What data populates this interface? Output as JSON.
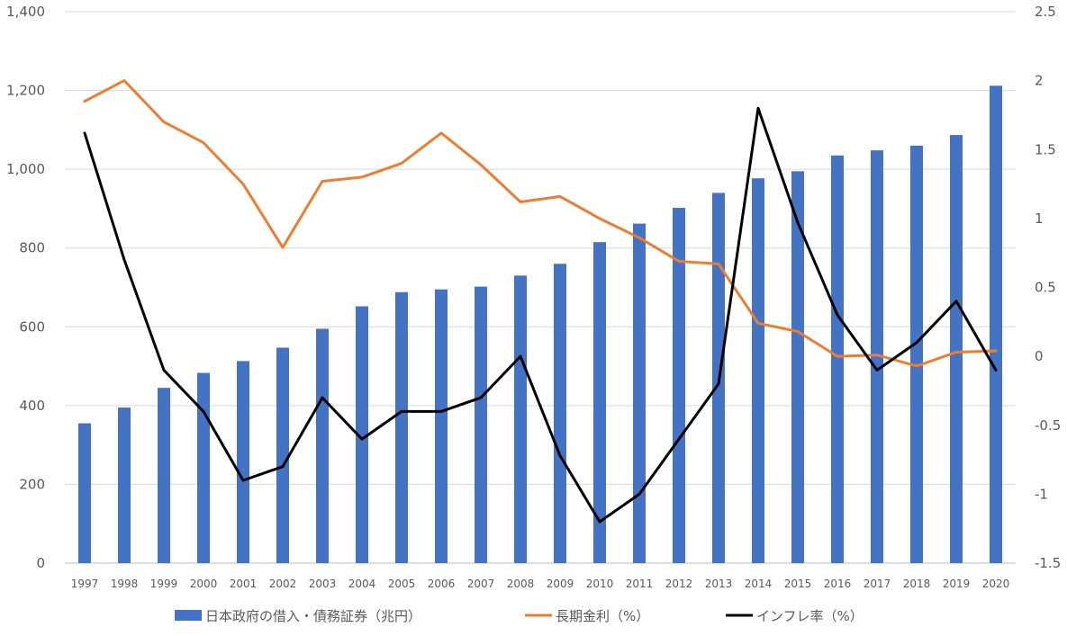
{
  "chart_data": {
    "type": "bar",
    "categories": [
      "1997",
      "1998",
      "1999",
      "2000",
      "2001",
      "2002",
      "2003",
      "2004",
      "2005",
      "2006",
      "2007",
      "2008",
      "2009",
      "2010",
      "2011",
      "2012",
      "2013",
      "2014",
      "2015",
      "2016",
      "2017",
      "2018",
      "2019",
      "2020"
    ],
    "series": [
      {
        "name": "日本政府の借入・債務証券（兆円）",
        "type": "bar",
        "axis": "left",
        "color": "#4472C4",
        "values": [
          355,
          395,
          445,
          483,
          513,
          547,
          595,
          652,
          688,
          695,
          702,
          730,
          760,
          815,
          862,
          902,
          940,
          977,
          995,
          1035,
          1048,
          1060,
          1087,
          1212
        ]
      },
      {
        "name": "長期金利（%）",
        "type": "line",
        "axis": "right",
        "color": "#ED7D31",
        "values": [
          1.85,
          2.0,
          1.7,
          1.55,
          1.25,
          0.79,
          1.27,
          1.3,
          1.4,
          1.62,
          1.39,
          1.12,
          1.16,
          1.0,
          0.86,
          0.69,
          0.67,
          0.24,
          0.18,
          0.0,
          0.01,
          -0.07,
          0.03,
          0.04
        ]
      },
      {
        "name": "インフレ率（%）",
        "type": "line",
        "axis": "right",
        "color": "#000000",
        "values": [
          1.62,
          0.7,
          -0.1,
          -0.4,
          -0.9,
          -0.8,
          -0.3,
          -0.6,
          -0.4,
          -0.4,
          -0.3,
          0.0,
          -0.72,
          -1.2,
          -1.0,
          -0.6,
          -0.2,
          1.8,
          0.97,
          0.3,
          -0.1,
          0.1,
          0.4,
          -0.1
        ]
      }
    ],
    "y_left": {
      "min": 0,
      "max": 1400,
      "step": 200,
      "ticks": [
        "0",
        "200",
        "400",
        "600",
        "800",
        "1,000",
        "1,200",
        "1,400"
      ]
    },
    "y_right": {
      "min": -1.5,
      "max": 2.5,
      "step": 0.5,
      "ticks": [
        "-1.5",
        "-1",
        "-0.5",
        "0",
        "0.5",
        "1",
        "1.5",
        "2",
        "2.5"
      ]
    },
    "title": "",
    "grid": true,
    "legend_position": "bottom"
  }
}
